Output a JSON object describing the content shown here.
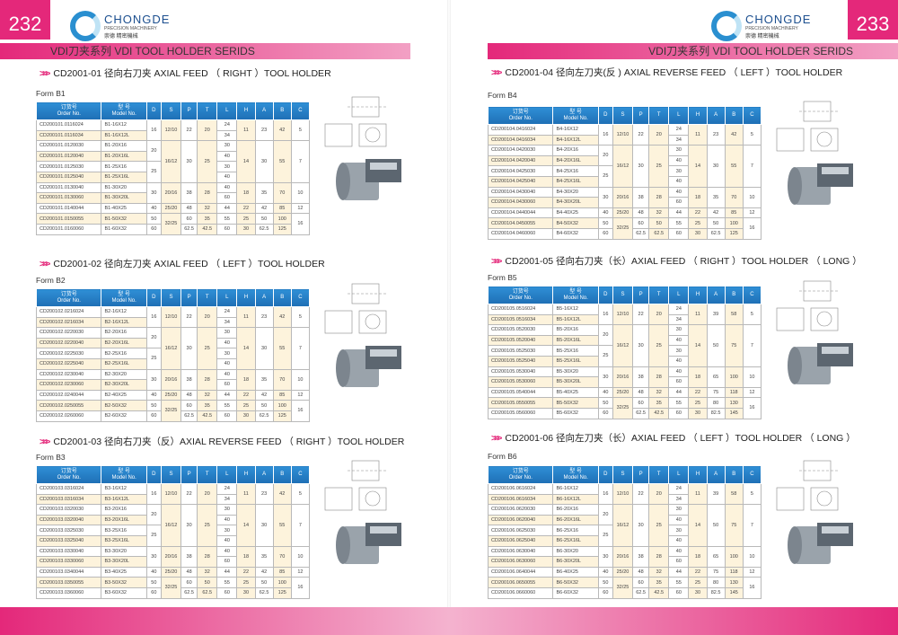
{
  "left_page": {
    "number": "232",
    "band": "VDI刀夹系列 VDI TOOL HOLDER SERIDS"
  },
  "right_page": {
    "number": "233",
    "band": "VDI刀夹系列 VDI TOOL HOLDER SERIDS"
  },
  "logo": {
    "name": "CHONGDE",
    "sub": "PRECISION MACHINERY",
    "cn": "崇德 精密機械"
  },
  "colors": {
    "accent": "#e4287a",
    "header_blue": "#1e6fb5",
    "cream": "#fdf3dc"
  },
  "columns": {
    "order_cn": "订货号",
    "order_en": "Order No.",
    "model_cn": "型 号",
    "model_en": "Model No.",
    "dims": [
      "D",
      "S",
      "P",
      "T",
      "L",
      "H",
      "A",
      "B",
      "C"
    ]
  },
  "sections": [
    {
      "title": "CD2001-01  径向右刀夹 AXIAL FEED （ RIGHT ）TOOL HOLDER",
      "form": "Form B1",
      "code": "CD200101.01",
      "model": "B1",
      "T": [
        "20",
        "20",
        "25",
        "25",
        "25",
        "25",
        "28",
        "28",
        "32",
        "35",
        "42.5"
      ],
      "A": [
        "23",
        "23",
        "30",
        "30",
        "30",
        "30",
        "35",
        "35",
        "42",
        "50",
        "62.5"
      ],
      "B": [
        "42",
        "42",
        "55",
        "55",
        "55",
        "55",
        "70",
        "70",
        "85",
        "100",
        "125"
      ]
    },
    {
      "title": "CD2001-02  径向左刀夹 AXIAL FEED （ LEFT ）TOOL HOLDER",
      "form": "Form B2",
      "code": "CD200102.02",
      "model": "B2",
      "T": [
        "20",
        "20",
        "25",
        "25",
        "25",
        "25",
        "28",
        "28",
        "32",
        "35",
        "42.5"
      ],
      "A": [
        "23",
        "23",
        "30",
        "30",
        "30",
        "30",
        "35",
        "35",
        "42",
        "50",
        "62.5"
      ],
      "B": [
        "42",
        "42",
        "55",
        "55",
        "55",
        "55",
        "70",
        "70",
        "85",
        "100",
        "125"
      ]
    },
    {
      "title": "CD2001-03  径向右刀夹（反）AXIAL REVERSE FEED （ RIGHT ）TOOL HOLDER",
      "form": "Form B3",
      "code": "CD200103.03",
      "model": "B3",
      "T": [
        "20",
        "20",
        "25",
        "25",
        "25",
        "25",
        "28",
        "28",
        "32",
        "50",
        "62.5"
      ],
      "A": [
        "23",
        "23",
        "30",
        "30",
        "30",
        "30",
        "35",
        "35",
        "42",
        "50",
        "62.5"
      ],
      "B": [
        "42",
        "42",
        "55",
        "55",
        "55",
        "55",
        "70",
        "70",
        "85",
        "100",
        "125"
      ]
    },
    {
      "title": "CD2001-04  径向左刀夹(反 ) AXIAL REVERSE FEED （ LEFT ）TOOL HOLDER",
      "form": "Form B4",
      "code": "CD200104.04",
      "model": "B4",
      "T": [
        "20",
        "20",
        "25",
        "25",
        "25",
        "25",
        "28",
        "28",
        "32",
        "50",
        "62.5"
      ],
      "A": [
        "23",
        "23",
        "30",
        "30",
        "30",
        "30",
        "35",
        "35",
        "42",
        "50",
        "62.5"
      ],
      "B": [
        "42",
        "42",
        "55",
        "55",
        "55",
        "55",
        "70",
        "70",
        "85",
        "100",
        "125"
      ]
    },
    {
      "title": "CD2001-05  径向右刀夹（长）AXIAL  FEED （ RIGHT ）TOOL HOLDER （ LONG ）",
      "form": "Form B5",
      "code": "CD200105.05",
      "model": "B5",
      "T": [
        "20",
        "20",
        "25",
        "25",
        "25",
        "25",
        "28",
        "28",
        "32",
        "35",
        "42.5"
      ],
      "A": [
        "39",
        "39",
        "50",
        "50",
        "50",
        "50",
        "65",
        "65",
        "75",
        "80",
        "82.5"
      ],
      "B": [
        "58",
        "58",
        "75",
        "75",
        "75",
        "75",
        "100",
        "100",
        "118",
        "130",
        "145"
      ]
    },
    {
      "title": "CD2001-06  径向左刀夹（长）AXIAL  FEED （ LEFT ）TOOL HOLDER （ LONG ）",
      "form": "Form B6",
      "code": "CD200106.06",
      "model": "B6",
      "T": [
        "20",
        "20",
        "25",
        "25",
        "25",
        "25",
        "28",
        "28",
        "32",
        "35",
        "42.5"
      ],
      "A": [
        "39",
        "39",
        "50",
        "50",
        "50",
        "50",
        "65",
        "65",
        "75",
        "80",
        "82.5"
      ],
      "B": [
        "58",
        "58",
        "75",
        "75",
        "75",
        "75",
        "100",
        "100",
        "118",
        "130",
        "145"
      ]
    }
  ],
  "common": {
    "order_suffix": [
      "16024",
      "16034",
      "20030",
      "20040",
      "25030",
      "25040",
      "30040",
      "30060",
      "40044",
      "50055",
      "60060"
    ],
    "model_suffix": [
      "-16X12",
      "-16X12L",
      "-20X16",
      "-20X16L",
      "-25X16",
      "-25X16L",
      "-30X20",
      "-30X20L",
      "-40X25",
      "-50X32",
      "-60X32"
    ],
    "D": [
      "16",
      "16",
      "20",
      "20",
      "25",
      "25",
      "30",
      "30",
      "40",
      "50",
      "60"
    ],
    "S": [
      "12/10",
      "12/10",
      "16/12",
      "16/12",
      "16/12",
      "16/12",
      "20/16",
      "20/16",
      "25/20",
      "32/25",
      "32/25"
    ],
    "P": [
      "22",
      "22",
      "30",
      "30",
      "30",
      "30",
      "38",
      "38",
      "48",
      "60",
      "62.5"
    ],
    "L": [
      "24",
      "34",
      "30",
      "40",
      "30",
      "40",
      "40",
      "60",
      "44",
      "55",
      "60"
    ],
    "H": [
      "11",
      "11",
      "14",
      "14",
      "14",
      "14",
      "18",
      "18",
      "22",
      "25",
      "30"
    ],
    "C": [
      "5",
      "5",
      "7",
      "7",
      "7",
      "7",
      "10",
      "10",
      "12",
      "16",
      "16"
    ]
  }
}
